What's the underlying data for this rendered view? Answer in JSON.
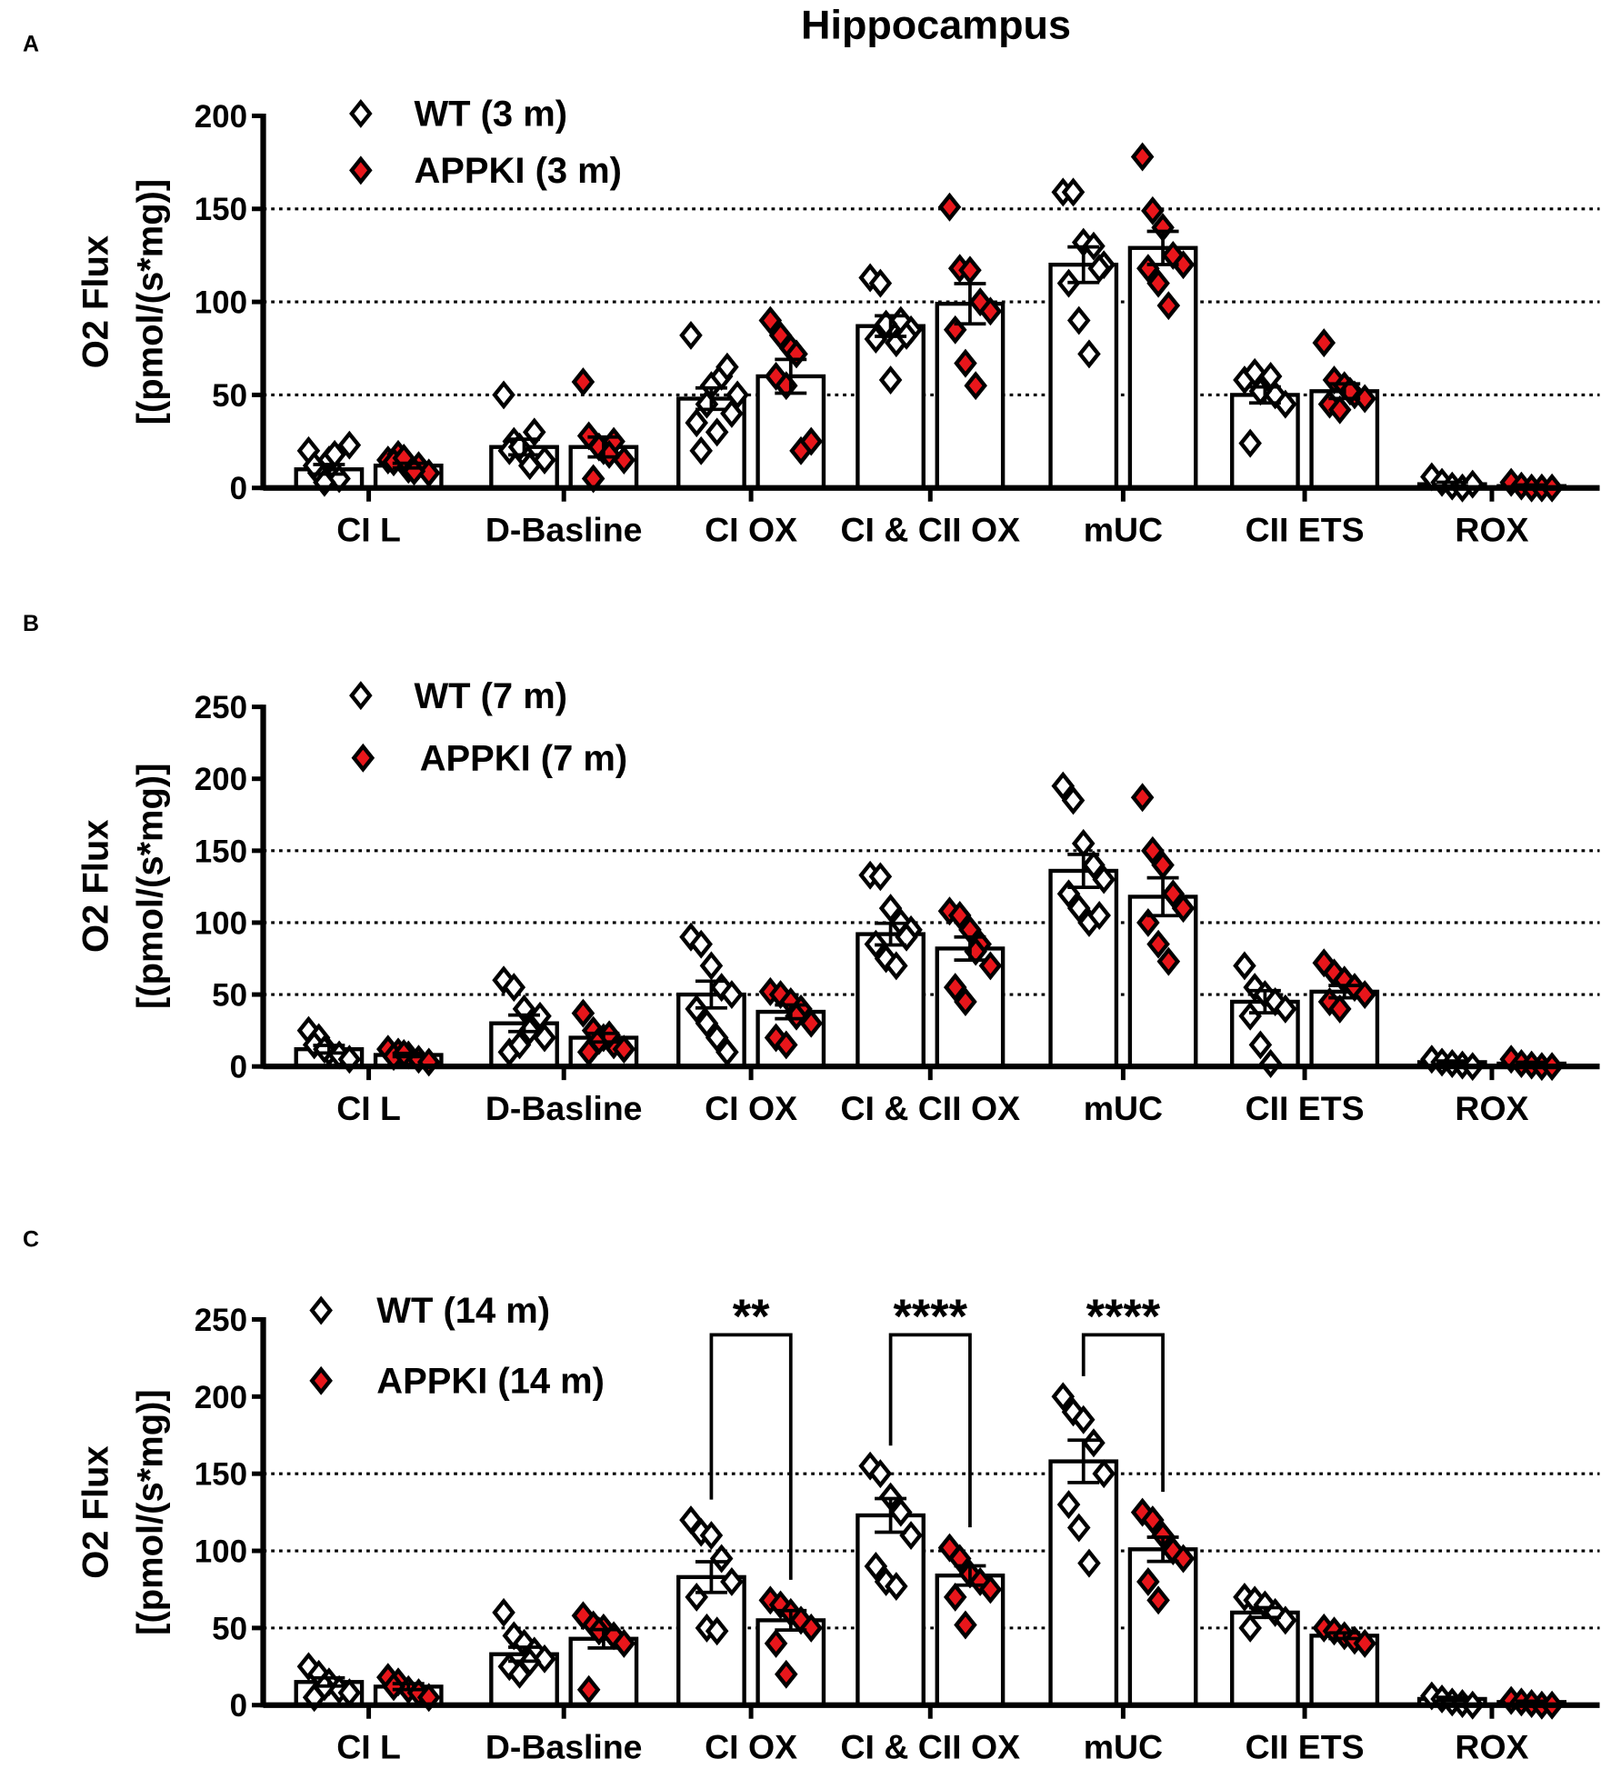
{
  "title": "Hippocampus",
  "colors": {
    "wt_fill": "#ffffff",
    "appki_fill": "#e8161b",
    "stroke": "#000000",
    "bar_fill": "#ffffff"
  },
  "chart_data": [
    {
      "type": "bar",
      "panel": "A",
      "ylabel_line1": "O2 Flux",
      "ylabel_line2": "[(pmol/(s*mg)]",
      "ylim": [
        0,
        200
      ],
      "yticks": [
        "0",
        "50",
        "100",
        "150",
        "200"
      ],
      "ytick_values": [
        0,
        50,
        100,
        150,
        200
      ],
      "grid": "dotted at 50, 100, 150",
      "legend": [
        "WT (3 m)",
        "APPKI (3 m)"
      ],
      "legend_placement": "top-left",
      "categories": [
        "CI L",
        "D-Basline",
        "CI OX",
        "CI & CII OX",
        "mUC",
        "CII ETS",
        "ROX"
      ],
      "series": [
        {
          "name": "WT (3 m)",
          "means": [
            10,
            22,
            48,
            87,
            120,
            50,
            2
          ],
          "points": [
            [
              20,
              8,
              15,
              5,
              23,
              12,
              3,
              18
            ],
            [
              50,
              25,
              18,
              30,
              15,
              20,
              22,
              12
            ],
            [
              82,
              20,
              55,
              60,
              40,
              35,
              45,
              30,
              65,
              50
            ],
            [
              113,
              110,
              58,
              90,
              85,
              80,
              88,
              78,
              82
            ],
            [
              159,
              159,
              132,
              130,
              120,
              110,
              90,
              72,
              118
            ],
            [
              58,
              62,
              55,
              50,
              45,
              24,
              52,
              60
            ],
            [
              6,
              3,
              1,
              0,
              2
            ]
          ]
        },
        {
          "name": "APPKI (3 m)",
          "means": [
            12,
            22,
            60,
            99,
            129,
            52,
            1
          ],
          "points": [
            [
              15,
              18,
              10,
              12,
              8,
              14,
              16,
              9
            ],
            [
              57,
              5,
              20,
              25,
              15,
              28,
              22,
              18
            ],
            [
              90,
              82,
              75,
              20,
              25,
              60,
              55,
              72
            ],
            [
              151,
              118,
              117,
              100,
              95,
              85,
              67,
              55
            ],
            [
              178,
              149,
              140,
              125,
              120,
              118,
              110,
              98
            ],
            [
              78,
              58,
              55,
              50,
              48,
              45,
              42,
              52
            ],
            [
              3,
              1,
              0,
              0,
              0
            ]
          ]
        }
      ],
      "significance": []
    },
    {
      "type": "bar",
      "panel": "B",
      "ylabel_line1": "O2 Flux",
      "ylabel_line2": "[(pmol/(s*mg)]",
      "ylim": [
        0,
        250
      ],
      "yticks": [
        "0",
        "50",
        "100",
        "150",
        "200",
        "250"
      ],
      "ytick_values": [
        0,
        50,
        100,
        150,
        200,
        250
      ],
      "grid": "dotted at 50, 100, 150",
      "legend": [
        "WT (7 m)",
        "APPKI (7 m)"
      ],
      "legend_placement": "top-left",
      "categories": [
        "CI L",
        "D-Basline",
        "CI OX",
        "CI & CII OX",
        "mUC",
        "CII ETS",
        "ROX"
      ],
      "series": [
        {
          "name": "WT (7 m)",
          "means": [
            12,
            30,
            50,
            92,
            136,
            45,
            3
          ],
          "points": [
            [
              25,
              20,
              10,
              8,
              5,
              15,
              12
            ],
            [
              60,
              55,
              40,
              30,
              20,
              10,
              15,
              25,
              35
            ],
            [
              90,
              85,
              70,
              55,
              50,
              40,
              30,
              20,
              10
            ],
            [
              133,
              132,
              110,
              100,
              95,
              85,
              75,
              70,
              90
            ],
            [
              195,
              185,
              155,
              140,
              130,
              120,
              110,
              100,
              105
            ],
            [
              70,
              55,
              50,
              45,
              40,
              35,
              15,
              2
            ],
            [
              5,
              3,
              2,
              1,
              0
            ]
          ]
        },
        {
          "name": "APPKI (7 m)",
          "means": [
            8,
            20,
            38,
            82,
            118,
            52,
            2
          ],
          "points": [
            [
              12,
              10,
              8,
              5,
              3,
              7,
              9
            ],
            [
              37,
              25,
              20,
              15,
              12,
              10,
              18,
              22
            ],
            [
              52,
              50,
              45,
              40,
              30,
              20,
              15,
              35
            ],
            [
              108,
              105,
              95,
              85,
              70,
              55,
              45,
              80
            ],
            [
              187,
              150,
              140,
              120,
              110,
              100,
              85,
              73
            ],
            [
              72,
              65,
              60,
              55,
              50,
              45,
              40
            ],
            [
              5,
              2,
              1,
              0,
              0
            ]
          ]
        }
      ],
      "significance": []
    },
    {
      "type": "bar",
      "panel": "C",
      "ylabel_line1": "O2 Flux",
      "ylabel_line2": "[(pmol/(s*mg)]",
      "ylim": [
        0,
        250
      ],
      "yticks": [
        "0",
        "50",
        "100",
        "150",
        "200",
        "250"
      ],
      "ytick_values": [
        0,
        50,
        100,
        150,
        200,
        250
      ],
      "grid": "dotted at 50, 100, 150",
      "legend": [
        "WT (14 m)",
        "APPKI (14 m)"
      ],
      "legend_placement": "top-left",
      "categories": [
        "CI L",
        "D-Basline",
        "CI OX",
        "CI & CII OX",
        "mUC",
        "CII ETS",
        "ROX"
      ],
      "series": [
        {
          "name": "WT (14 m)",
          "means": [
            15,
            33,
            83,
            123,
            158,
            60,
            4
          ],
          "points": [
            [
              25,
              20,
              15,
              10,
              8,
              5,
              12
            ],
            [
              60,
              45,
              40,
              35,
              30,
              25,
              20,
              28
            ],
            [
              120,
              112,
              110,
              95,
              80,
              70,
              50,
              48
            ],
            [
              155,
              150,
              135,
              125,
              110,
              90,
              80,
              77
            ],
            [
              200,
              190,
              185,
              170,
              150,
              130,
              115,
              92
            ],
            [
              70,
              68,
              65,
              60,
              55,
              50
            ],
            [
              6,
              4,
              2,
              1,
              0
            ]
          ]
        },
        {
          "name": "APPKI (14 m)",
          "means": [
            12,
            43,
            55,
            84,
            101,
            45,
            2
          ],
          "points": [
            [
              18,
              15,
              10,
              8,
              5,
              12
            ],
            [
              58,
              52,
              50,
              45,
              40,
              10,
              48
            ],
            [
              68,
              65,
              60,
              55,
              50,
              40,
              20
            ],
            [
              102,
              95,
              85,
              80,
              75,
              70,
              52
            ],
            [
              125,
              120,
              110,
              100,
              95,
              80,
              68
            ],
            [
              50,
              48,
              45,
              42,
              40
            ],
            [
              3,
              2,
              1,
              0,
              0
            ]
          ]
        }
      ],
      "significance": [
        {
          "category": "CI OX",
          "label": "**"
        },
        {
          "category": "CI & CII OX",
          "label": "****"
        },
        {
          "category": "mUC",
          "label": "****"
        }
      ]
    }
  ]
}
